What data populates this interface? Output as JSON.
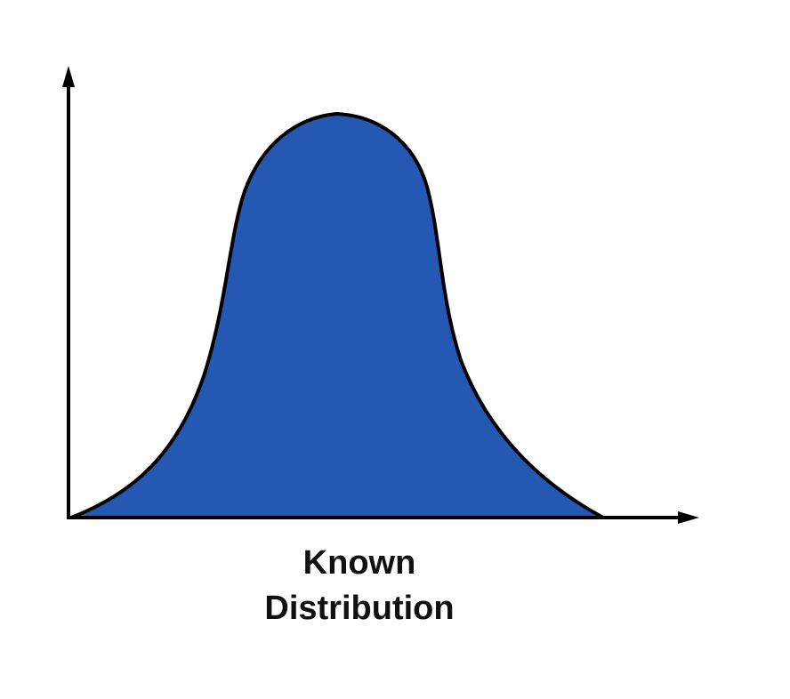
{
  "diagram": {
    "label_line1": "Known",
    "label_line2": "Distribution",
    "curve_fill_color": "#2458b3",
    "outline_color": "#000000"
  }
}
